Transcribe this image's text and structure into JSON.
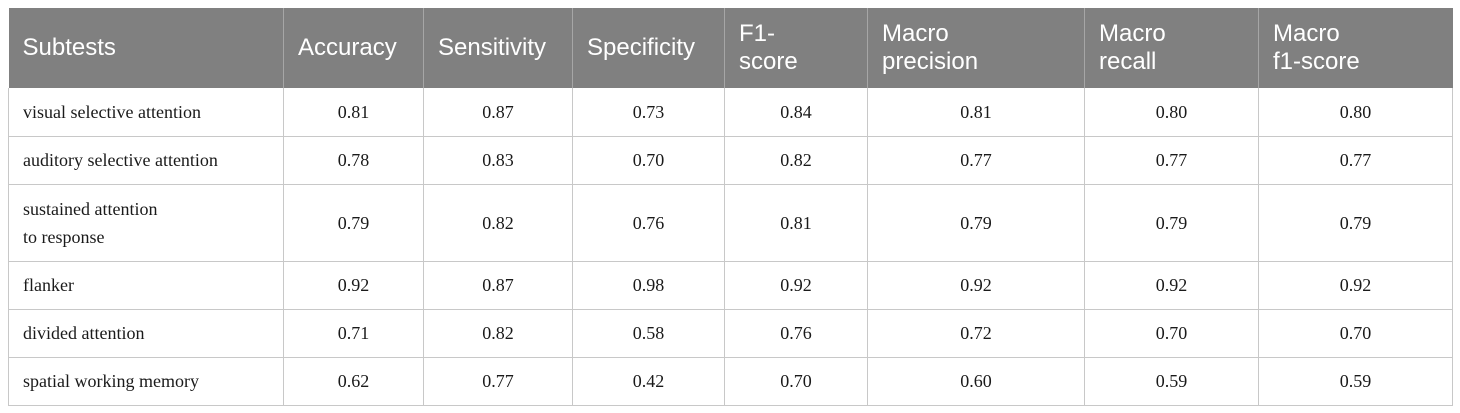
{
  "table": {
    "headers": [
      "Subtests",
      "Accuracy",
      "Sensitivity",
      "Specificity",
      "F1-\nscore",
      "Macro\nprecision",
      "Macro\nrecall",
      "Macro\nf1-score"
    ],
    "rows": [
      [
        "visual selective attention",
        "0.81",
        "0.87",
        "0.73",
        "0.84",
        "0.81",
        "0.80",
        "0.80"
      ],
      [
        "auditory selective attention",
        "0.78",
        "0.83",
        "0.70",
        "0.82",
        "0.77",
        "0.77",
        "0.77"
      ],
      [
        "sustained attention\nto response",
        "0.79",
        "0.82",
        "0.76",
        "0.81",
        "0.79",
        "0.79",
        "0.79"
      ],
      [
        "flanker",
        "0.92",
        "0.87",
        "0.98",
        "0.92",
        "0.92",
        "0.92",
        "0.92"
      ],
      [
        "divided attention",
        "0.71",
        "0.82",
        "0.58",
        "0.76",
        "0.72",
        "0.70",
        "0.70"
      ],
      [
        "spatial working memory",
        "0.62",
        "0.77",
        "0.42",
        "0.70",
        "0.60",
        "0.59",
        "0.59"
      ]
    ]
  },
  "chart_data": {
    "type": "table",
    "columns": [
      "Subtests",
      "Accuracy",
      "Sensitivity",
      "Specificity",
      "F1-score",
      "Macro precision",
      "Macro recall",
      "Macro f1-score"
    ],
    "rows": [
      {
        "Subtests": "visual selective attention",
        "Accuracy": 0.81,
        "Sensitivity": 0.87,
        "Specificity": 0.73,
        "F1-score": 0.84,
        "Macro precision": 0.81,
        "Macro recall": 0.8,
        "Macro f1-score": 0.8
      },
      {
        "Subtests": "auditory selective attention",
        "Accuracy": 0.78,
        "Sensitivity": 0.83,
        "Specificity": 0.7,
        "F1-score": 0.82,
        "Macro precision": 0.77,
        "Macro recall": 0.77,
        "Macro f1-score": 0.77
      },
      {
        "Subtests": "sustained attention to response",
        "Accuracy": 0.79,
        "Sensitivity": 0.82,
        "Specificity": 0.76,
        "F1-score": 0.81,
        "Macro precision": 0.79,
        "Macro recall": 0.79,
        "Macro f1-score": 0.79
      },
      {
        "Subtests": "flanker",
        "Accuracy": 0.92,
        "Sensitivity": 0.87,
        "Specificity": 0.98,
        "F1-score": 0.92,
        "Macro precision": 0.92,
        "Macro recall": 0.92,
        "Macro f1-score": 0.92
      },
      {
        "Subtests": "divided attention",
        "Accuracy": 0.71,
        "Sensitivity": 0.82,
        "Specificity": 0.58,
        "F1-score": 0.76,
        "Macro precision": 0.72,
        "Macro recall": 0.7,
        "Macro f1-score": 0.7
      },
      {
        "Subtests": "spatial working memory",
        "Accuracy": 0.62,
        "Sensitivity": 0.77,
        "Specificity": 0.42,
        "F1-score": 0.7,
        "Macro precision": 0.6,
        "Macro recall": 0.59,
        "Macro f1-score": 0.59
      }
    ]
  }
}
